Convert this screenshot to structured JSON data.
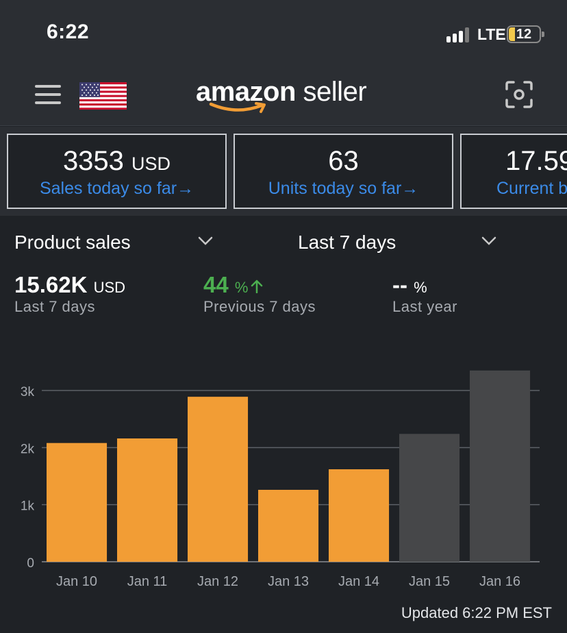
{
  "status_bar": {
    "time": "6:22",
    "network": "LTE",
    "battery": "12"
  },
  "header": {
    "logo_bold": "amazon",
    "logo_rest": " seller"
  },
  "kpis": [
    {
      "value": "3353",
      "unit": "USD",
      "link": "Sales today so far"
    },
    {
      "value": "63",
      "unit": "",
      "link": "Units today so far"
    },
    {
      "value": "17.59",
      "unit": "",
      "link": "Current b"
    }
  ],
  "selectors": {
    "metric": "Product sales",
    "period": "Last 7 days"
  },
  "metrics": {
    "total": {
      "value": "15.62K",
      "unit": "USD",
      "label": "Last 7 days"
    },
    "previous": {
      "value": "44",
      "unit": "%",
      "label": "Previous 7 days"
    },
    "last_year": {
      "value": "--",
      "unit": "%",
      "label": "Last year"
    }
  },
  "colors": {
    "accent": "#f29d35",
    "current_period": "#464749",
    "link": "#3b8be8",
    "positive": "#4caf50"
  },
  "chart_data": {
    "type": "bar",
    "categories": [
      "Jan 10",
      "Jan 11",
      "Jan 12",
      "Jan 13",
      "Jan 14",
      "Jan 15",
      "Jan 16"
    ],
    "values": [
      2080,
      2160,
      2890,
      1260,
      1620,
      2240,
      3350
    ],
    "highlighted": [
      true,
      true,
      true,
      true,
      true,
      false,
      false
    ],
    "yticks": [
      0,
      1000,
      2000,
      3000
    ],
    "yticklabels": [
      "0",
      "1k",
      "2k",
      "3k"
    ],
    "ylim": [
      0,
      3000
    ],
    "grid": true
  },
  "footer": {
    "updated": "Updated 6:22 PM EST"
  }
}
